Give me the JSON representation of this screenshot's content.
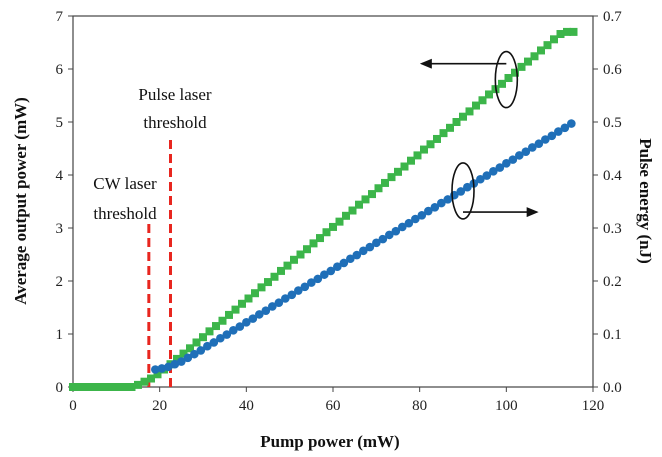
{
  "chart_data": {
    "type": "scatter",
    "xlabel": "Pump power (mW)",
    "ylabel_left": "Average output power (mW)",
    "ylabel_right": "Pulse energy (nJ)",
    "xlim": [
      0,
      120
    ],
    "ylim_left": [
      0,
      7
    ],
    "ylim_right": [
      0.0,
      0.7
    ],
    "xticks": [
      "0",
      "20",
      "40",
      "60",
      "80",
      "100",
      "120"
    ],
    "yticks_left": [
      "0",
      "1",
      "2",
      "3",
      "4",
      "5",
      "6",
      "7"
    ],
    "yticks_right": [
      "0.0",
      "0.1",
      "0.2",
      "0.3",
      "0.4",
      "0.5",
      "0.6",
      "0.7"
    ],
    "grid": false,
    "series": [
      {
        "axis": "left",
        "marker": "square",
        "color": "#3cb54a",
        "x": [
          0,
          1.5,
          3,
          4.5,
          6,
          7.5,
          9,
          10.5,
          12,
          13.5,
          15,
          16.5,
          18,
          19.5,
          21,
          22.5,
          24,
          25.5,
          27,
          28.5,
          30,
          31.5,
          33,
          34.5,
          36,
          37.5,
          39,
          40.5,
          42,
          43.5,
          45,
          46.5,
          48,
          49.5,
          51,
          52.5,
          54,
          55.5,
          57,
          58.5,
          60,
          61.5,
          63,
          64.5,
          66,
          67.5,
          69,
          70.5,
          72,
          73.5,
          75,
          76.5,
          78,
          79.5,
          81,
          82.5,
          84,
          85.5,
          87,
          88.5,
          90,
          91.5,
          93,
          94.5,
          96,
          97.5,
          99,
          100.5,
          102,
          103.5,
          105,
          106.5,
          108,
          109.5,
          111,
          112.5,
          114,
          115.5
        ],
        "y": [
          0,
          0,
          0,
          0,
          0,
          0,
          0,
          0,
          0,
          0,
          0.04,
          0.1,
          0.16,
          0.24,
          0.33,
          0.43,
          0.53,
          0.63,
          0.73,
          0.84,
          0.94,
          1.05,
          1.15,
          1.25,
          1.36,
          1.46,
          1.57,
          1.67,
          1.77,
          1.88,
          1.98,
          2.08,
          2.19,
          2.29,
          2.4,
          2.5,
          2.6,
          2.71,
          2.81,
          2.92,
          3.02,
          3.12,
          3.23,
          3.33,
          3.44,
          3.54,
          3.64,
          3.75,
          3.85,
          3.96,
          4.06,
          4.16,
          4.27,
          4.37,
          4.48,
          4.58,
          4.68,
          4.79,
          4.89,
          5,
          5.1,
          5.2,
          5.31,
          5.41,
          5.52,
          5.62,
          5.72,
          5.83,
          5.93,
          6.04,
          6.14,
          6.24,
          6.35,
          6.45,
          6.56,
          6.66,
          6.7,
          6.7
        ]
      },
      {
        "axis": "right",
        "marker": "circle",
        "color": "#1f6fb8",
        "x": [
          19,
          20.5,
          22,
          23.5,
          25,
          26.5,
          28,
          29.5,
          31,
          32.5,
          34,
          35.5,
          37,
          38.5,
          40,
          41.5,
          43,
          44.5,
          46,
          47.5,
          49,
          50.5,
          52,
          53.5,
          55,
          56.5,
          58,
          59.5,
          61,
          62.5,
          64,
          65.5,
          67,
          68.5,
          70,
          71.5,
          73,
          74.5,
          76,
          77.5,
          79,
          80.5,
          82,
          83.5,
          85,
          86.5,
          88,
          89.5,
          91,
          92.5,
          94,
          95.5,
          97,
          98.5,
          100,
          101.5,
          103,
          104.5,
          106,
          107.5,
          109,
          110.5,
          112,
          113.5,
          115
        ],
        "y": [
          0.033,
          0.035,
          0.038,
          0.043,
          0.048,
          0.055,
          0.062,
          0.069,
          0.077,
          0.084,
          0.092,
          0.099,
          0.107,
          0.114,
          0.122,
          0.129,
          0.137,
          0.144,
          0.152,
          0.159,
          0.167,
          0.174,
          0.182,
          0.189,
          0.197,
          0.204,
          0.212,
          0.219,
          0.227,
          0.234,
          0.242,
          0.249,
          0.257,
          0.264,
          0.272,
          0.279,
          0.287,
          0.294,
          0.302,
          0.309,
          0.317,
          0.324,
          0.332,
          0.339,
          0.347,
          0.354,
          0.362,
          0.369,
          0.377,
          0.384,
          0.392,
          0.399,
          0.407,
          0.414,
          0.422,
          0.429,
          0.437,
          0.444,
          0.452,
          0.459,
          0.467,
          0.474,
          0.482,
          0.489,
          0.497
        ]
      }
    ],
    "annotations": [
      {
        "text": [
          "CW laser",
          "threshold"
        ],
        "line_x": 17.5,
        "line_top": 3.1
      },
      {
        "text": [
          "Pulse laser",
          "threshold"
        ],
        "line_x": 22.5,
        "line_top": 4.7
      }
    ],
    "threshold_line_color": "#e8261f"
  }
}
